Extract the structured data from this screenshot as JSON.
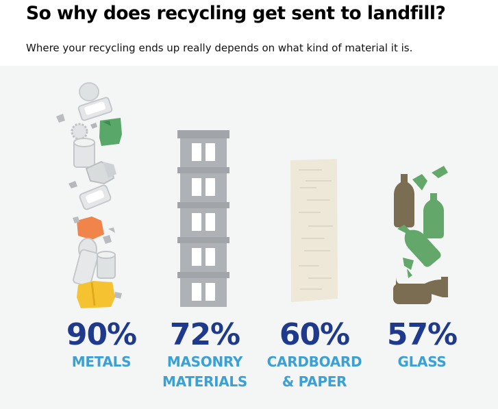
{
  "header": {
    "title": "So why does recycling get sent to landfill?",
    "subtitle": "Where your recycling ends up really depends on what kind of material it is."
  },
  "colors": {
    "percent": "#1f3a8c",
    "label": "#3aa0d5",
    "background": "#f4f5f5",
    "metal_green": "#5aa869",
    "metal_orange": "#f0844a",
    "metal_yellow": "#f5c332",
    "masonry_grey": "#a9acb0",
    "cardboard": "#ede8d7",
    "glass_brown": "#7b6d52",
    "glass_green": "#63a86a"
  },
  "chart_data": {
    "type": "table",
    "categories": [
      "METALS",
      "MASONRY MATERIALS",
      "CARDBOARD & PAPER",
      "GLASS"
    ],
    "values": [
      90,
      72,
      60,
      57
    ],
    "items": [
      {
        "percent": "90%",
        "label_lines": [
          "METALS"
        ],
        "illustration": "metal-cans-icon"
      },
      {
        "percent": "72%",
        "label_lines": [
          "MASONRY",
          "MATERIALS"
        ],
        "illustration": "cinder-block-stack-icon"
      },
      {
        "percent": "60%",
        "label_lines": [
          "CARDBOARD",
          "& PAPER"
        ],
        "illustration": "cardboard-sheet-icon"
      },
      {
        "percent": "57%",
        "label_lines": [
          "GLASS"
        ],
        "illustration": "glass-bottles-icon"
      }
    ]
  }
}
